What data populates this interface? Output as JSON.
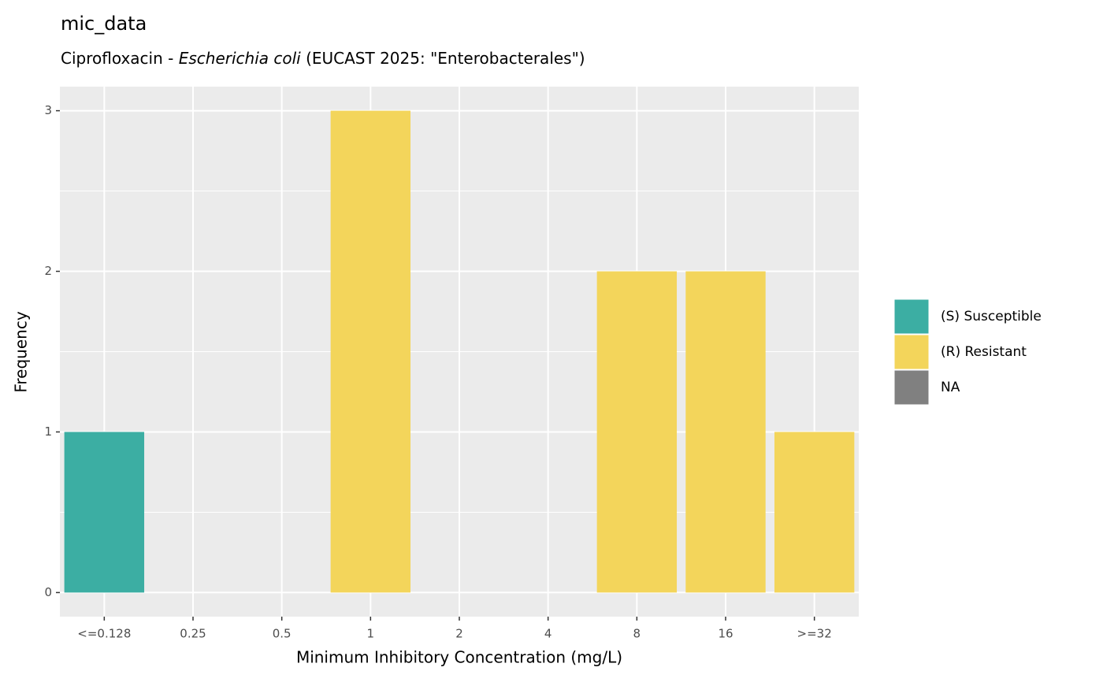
{
  "chart_data": {
    "type": "bar",
    "stacked": true,
    "title": "mic_data",
    "subtitle": [
      "Ciprofloxacin - ",
      "Escherichia coli",
      " (EUCAST 2025: \"Enterobacterales\")"
    ],
    "x_label": "Minimum Inhibitory Concentration (mg/L)",
    "y_label": "Frequency",
    "categories": [
      "<=0.128",
      "0.25",
      "0.5",
      "1",
      "2",
      "4",
      "8",
      "16",
      ">=32"
    ],
    "series": [
      {
        "name": "(S) Susceptible",
        "color": "#3caea3",
        "values": [
          1,
          0,
          0,
          0,
          0,
          0,
          0,
          0,
          0
        ]
      },
      {
        "name": "(R) Resistant",
        "color": "#f3d55b",
        "values": [
          0,
          0,
          0,
          3,
          0,
          0,
          2,
          2,
          1
        ]
      },
      {
        "name": "NA",
        "color": "#808080",
        "values": [
          0,
          0,
          0,
          0,
          0,
          0,
          0,
          0,
          0
        ]
      }
    ],
    "ylim": [
      -0.15,
      3.15
    ],
    "yticks": [
      0,
      1,
      2,
      3
    ],
    "y_minor_grid": [
      0.5,
      1.5,
      2.5
    ],
    "grid": true,
    "legend": "right"
  }
}
